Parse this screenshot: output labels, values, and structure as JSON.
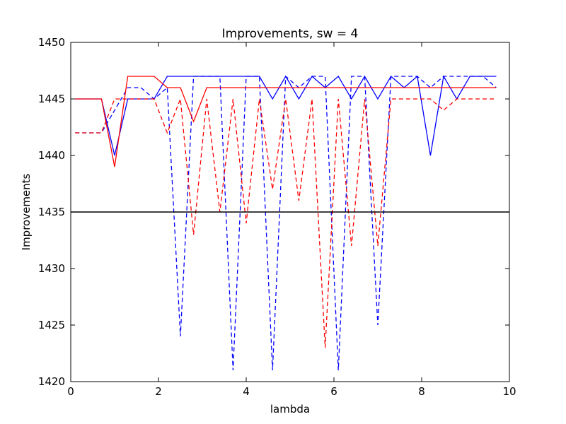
{
  "chart_data": {
    "type": "line",
    "title": "Improvements, sw = 4",
    "xlabel": "lambda",
    "ylabel": "Improvements",
    "xlim": [
      0,
      10
    ],
    "ylim": [
      1420,
      1450
    ],
    "xticks": [
      "0",
      "2",
      "4",
      "6",
      "8",
      "10"
    ],
    "yticks": [
      "1420",
      "1425",
      "1430",
      "1435",
      "1440",
      "1445",
      "1450"
    ],
    "grid": false,
    "reference_line": {
      "y": 1435,
      "color": "#000000"
    },
    "x": [
      0.1,
      0.4,
      0.7,
      1.0,
      1.3,
      1.6,
      1.9,
      2.2,
      2.5,
      2.8,
      3.1,
      3.4,
      3.7,
      4.0,
      4.3,
      4.6,
      4.9,
      5.2,
      5.5,
      5.8,
      6.1,
      6.4,
      6.7,
      7.0,
      7.3,
      7.6,
      7.9,
      8.2,
      8.5,
      8.8,
      9.1,
      9.4,
      9.7
    ],
    "series": [
      {
        "color": "#0000ff",
        "style": "solid",
        "values": [
          1445,
          1445,
          1445,
          1440,
          1445,
          1445,
          1445,
          1447,
          1447,
          1447,
          1447,
          1447,
          1447,
          1447,
          1447,
          1445,
          1447,
          1445,
          1447,
          1446,
          1447,
          1445,
          1447,
          1445,
          1447,
          1446,
          1447,
          1440,
          1447,
          1445,
          1447,
          1447,
          1447
        ]
      },
      {
        "color": "#0000ff",
        "style": "dashed",
        "values": [
          1442,
          1442,
          1442,
          1444,
          1446,
          1446,
          1445,
          1446,
          1424,
          1447,
          1447,
          1447,
          1421,
          1447,
          1447,
          1421,
          1447,
          1446,
          1447,
          1447,
          1421,
          1447,
          1447,
          1425,
          1447,
          1447,
          1447,
          1446,
          1447,
          1447,
          1447,
          1447,
          1446
        ]
      },
      {
        "color": "#ff0000",
        "style": "solid",
        "values": [
          1445,
          1445,
          1445,
          1439,
          1447,
          1447,
          1447,
          1446,
          1446,
          1443,
          1446,
          1446,
          1446,
          1446,
          1446,
          1446,
          1446,
          1446,
          1446,
          1446,
          1446,
          1446,
          1446,
          1446,
          1446,
          1446,
          1446,
          1446,
          1446,
          1446,
          1446,
          1446,
          1446
        ]
      },
      {
        "color": "#ff0000",
        "style": "dashed",
        "values": [
          1442,
          1442,
          1442,
          1445,
          1445,
          1445,
          1445,
          1442,
          1445,
          1433,
          1445,
          1435,
          1445,
          1434,
          1445,
          1437,
          1445,
          1436,
          1445,
          1423,
          1445,
          1432,
          1445,
          1432,
          1445,
          1445,
          1445,
          1445,
          1444,
          1445,
          1445,
          1445,
          1445
        ]
      }
    ]
  }
}
